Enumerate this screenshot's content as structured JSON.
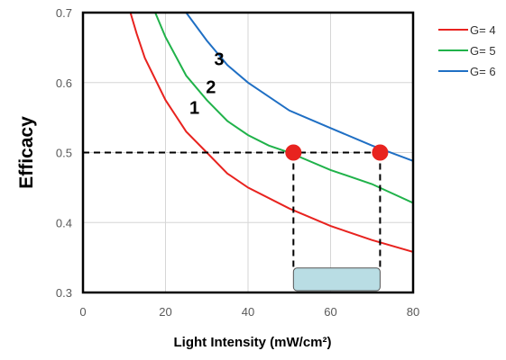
{
  "chart_data": {
    "type": "line",
    "xlabel": "Light Intensity (mW/cm²)",
    "ylabel": "Efficacy",
    "xlim": [
      0,
      80
    ],
    "ylim": [
      0.3,
      0.7
    ],
    "x_ticks": [
      0,
      20,
      40,
      60,
      80
    ],
    "y_ticks": [
      0.3,
      0.4,
      0.5,
      0.6,
      0.7
    ],
    "x_tick_labels": [
      "0",
      "20",
      "40",
      "60",
      "80"
    ],
    "y_tick_labels": [
      "0.3",
      "0.4",
      "0.5",
      "0.6",
      "0.7"
    ],
    "grid": true,
    "legend_position": "top-right",
    "series": [
      {
        "name": "G= 4",
        "label": "1",
        "color": "#e8231f",
        "points": [
          [
            11.5,
            0.7
          ],
          [
            13,
            0.67
          ],
          [
            15,
            0.635
          ],
          [
            20,
            0.575
          ],
          [
            25,
            0.53
          ],
          [
            30,
            0.5
          ],
          [
            35,
            0.47
          ],
          [
            40,
            0.45
          ],
          [
            50,
            0.42
          ],
          [
            60,
            0.395
          ],
          [
            70,
            0.375
          ],
          [
            80,
            0.358
          ]
        ]
      },
      {
        "name": "G= 5",
        "label": "2",
        "color": "#20b24a",
        "points": [
          [
            17.5,
            0.7
          ],
          [
            20,
            0.665
          ],
          [
            25,
            0.61
          ],
          [
            30,
            0.575
          ],
          [
            35,
            0.545
          ],
          [
            40,
            0.525
          ],
          [
            45,
            0.51
          ],
          [
            50,
            0.5
          ],
          [
            60,
            0.475
          ],
          [
            70,
            0.455
          ],
          [
            80,
            0.428
          ]
        ]
      },
      {
        "name": "G= 6",
        "label": "3",
        "color": "#1f6fc4",
        "points": [
          [
            25,
            0.7
          ],
          [
            30,
            0.66
          ],
          [
            35,
            0.625
          ],
          [
            40,
            0.6
          ],
          [
            50,
            0.56
          ],
          [
            60,
            0.535
          ],
          [
            70,
            0.51
          ],
          [
            80,
            0.488
          ]
        ]
      }
    ],
    "reference_line_y": 0.5,
    "markers": [
      {
        "x": 51,
        "y": 0.5,
        "color": "#e8231f"
      },
      {
        "x": 72,
        "y": 0.5,
        "color": "#e8231f"
      }
    ],
    "vertical_guides_x": [
      51,
      72
    ],
    "highlight_range": {
      "x_from": 51,
      "x_to": 72,
      "y_from": 0.3,
      "y_to": 0.335,
      "color": "#b9dde4"
    }
  }
}
